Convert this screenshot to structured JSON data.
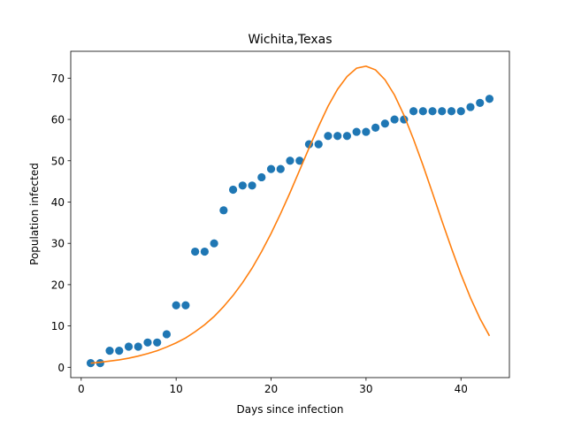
{
  "chart_data": {
    "type": "scatter",
    "title": "Wichita,Texas",
    "xlabel": "Days since infection",
    "ylabel": "Population infected",
    "xlim": [
      -1.1,
      45.1
    ],
    "ylim": [
      -2.5,
      76.5
    ],
    "xticks": [
      0,
      10,
      20,
      30,
      40
    ],
    "yticks": [
      0,
      10,
      20,
      30,
      40,
      50,
      60,
      70
    ],
    "grid": false,
    "series": [
      {
        "type": "scatter",
        "color": "#1f77b4",
        "x": [
          1,
          2,
          3,
          4,
          5,
          6,
          7,
          8,
          9,
          10,
          11,
          12,
          13,
          14,
          15,
          16,
          17,
          18,
          19,
          20,
          21,
          22,
          23,
          24,
          25,
          26,
          27,
          28,
          29,
          30,
          31,
          32,
          33,
          34,
          35,
          36,
          37,
          38,
          39,
          40,
          41,
          42,
          43
        ],
        "y": [
          1,
          1,
          4,
          4,
          5,
          5,
          6,
          6,
          8,
          15,
          15,
          28,
          28,
          30,
          38,
          43,
          44,
          44,
          46,
          48,
          48,
          50,
          50,
          54,
          54,
          56,
          56,
          56,
          57,
          57,
          58,
          59,
          60,
          60,
          62,
          62,
          62,
          62,
          62,
          62,
          63,
          64,
          65
        ]
      },
      {
        "type": "line",
        "color": "#ff7f0e",
        "x": [
          1,
          2,
          3,
          4,
          5,
          6,
          7,
          8,
          9,
          10,
          11,
          12,
          13,
          14,
          15,
          16,
          17,
          18,
          19,
          20,
          21,
          22,
          23,
          24,
          25,
          26,
          27,
          28,
          29,
          30,
          31,
          32,
          33,
          34,
          35,
          36,
          37,
          38,
          39,
          40,
          41,
          42,
          43
        ],
        "y": [
          1.0,
          1.2,
          1.5,
          1.8,
          2.2,
          2.7,
          3.3,
          4.0,
          4.9,
          5.9,
          7.1,
          8.6,
          10.3,
          12.3,
          14.7,
          17.4,
          20.5,
          24.0,
          28.0,
          32.4,
          37.2,
          42.3,
          47.7,
          53.1,
          58.3,
          63.2,
          67.3,
          70.4,
          72.4,
          72.9,
          72.0,
          69.6,
          65.9,
          61.0,
          55.2,
          48.9,
          42.2,
          35.4,
          28.8,
          22.5,
          16.8,
          11.8,
          7.6
        ]
      }
    ]
  }
}
